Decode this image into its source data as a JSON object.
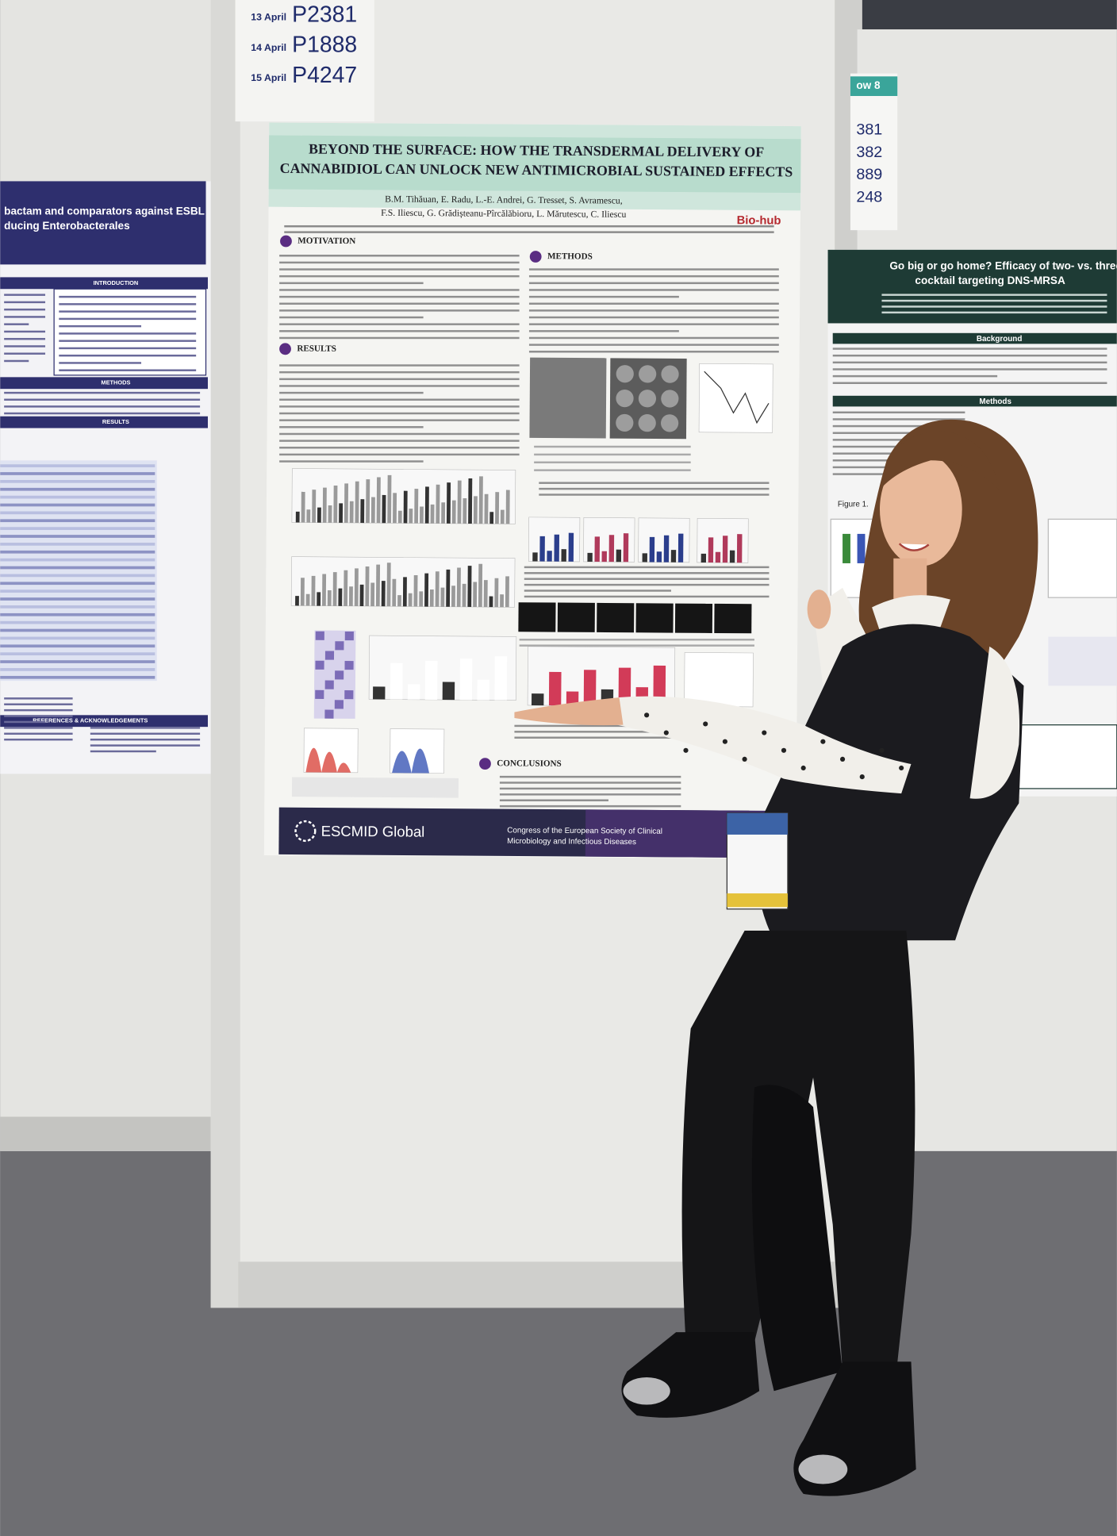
{
  "session_board": {
    "rows": [
      {
        "date": "13 April",
        "code": "P2381"
      },
      {
        "date": "14 April",
        "code": "P1888"
      },
      {
        "date": "15 April",
        "code": "P4247"
      }
    ]
  },
  "poster": {
    "title_lines": [
      "BEYOND THE SURFACE: HOW THE TRANSDERMAL DELIVERY OF",
      "CANNABIDIOL CAN UNLOCK NEW ANTIMICROBIAL SUSTAINED EFFECTS"
    ],
    "author_lines": [
      "B.M. Tihăuan, E. Radu, L.-E. Andrei, G. Tresset, S. Avramescu,",
      "F.S. Iliescu, G. Grădișteanu-Pîrcălăbioru, L. Mărutescu, C. Iliescu"
    ],
    "logo": "Bio-hub",
    "sections": [
      "MOTIVATION",
      "METHODS",
      "RESULTS",
      "CONCLUSIONS"
    ],
    "footer_brand": "ESCMID Global",
    "footer_lines": [
      "Congress of the European Society of Clinical",
      "Microbiology and Infectious Diseases"
    ]
  },
  "left_poster": {
    "title_lines": [
      "bactam and comparators against ESBL",
      "ducing Enterobacterales"
    ],
    "headings": [
      "INTRODUCTION",
      "METHODS",
      "RESULTS",
      "REFERENCES & ACKNOWLEDGEMENTS"
    ]
  },
  "right_panel": {
    "row_label": "ow 8",
    "numbers": [
      "381",
      "382",
      "889",
      "248"
    ],
    "title_lines": [
      "Go big or go home? Efficacy of two- vs. three-pha",
      "cocktail targeting DNS-MRSA"
    ],
    "headings": [
      "Background",
      "Methods",
      "Figure 1."
    ]
  }
}
